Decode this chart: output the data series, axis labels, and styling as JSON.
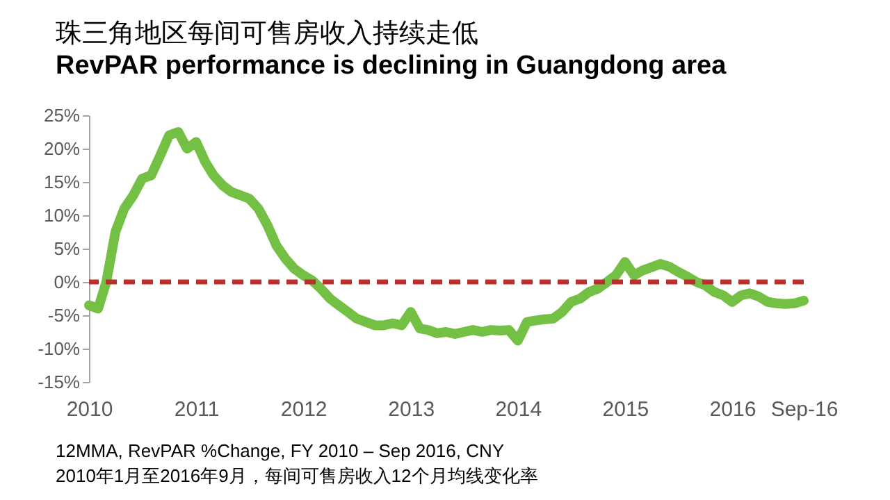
{
  "chart_data": {
    "type": "line",
    "title": "珠三角地区每间可售房收入持续走低",
    "subtitle": "RevPAR performance is declining in Guangdong area",
    "x": [
      "2010-01",
      "2010-02",
      "2010-03",
      "2010-04",
      "2010-05",
      "2010-06",
      "2010-07",
      "2010-08",
      "2010-09",
      "2010-10",
      "2010-11",
      "2010-12",
      "2011-01",
      "2011-02",
      "2011-03",
      "2011-04",
      "2011-05",
      "2011-06",
      "2011-07",
      "2011-08",
      "2011-09",
      "2011-10",
      "2011-11",
      "2011-12",
      "2012-01",
      "2012-02",
      "2012-03",
      "2012-04",
      "2012-05",
      "2012-06",
      "2012-07",
      "2012-08",
      "2012-09",
      "2012-10",
      "2012-11",
      "2012-12",
      "2013-01",
      "2013-02",
      "2013-03",
      "2013-04",
      "2013-05",
      "2013-06",
      "2013-07",
      "2013-08",
      "2013-09",
      "2013-10",
      "2013-11",
      "2013-12",
      "2014-01",
      "2014-02",
      "2014-03",
      "2014-04",
      "2014-05",
      "2014-06",
      "2014-07",
      "2014-08",
      "2014-09",
      "2014-10",
      "2014-11",
      "2014-12",
      "2015-01",
      "2015-02",
      "2015-03",
      "2015-04",
      "2015-05",
      "2015-06",
      "2015-07",
      "2015-08",
      "2015-09",
      "2015-10",
      "2015-11",
      "2015-12",
      "2016-01",
      "2016-02",
      "2016-03",
      "2016-04",
      "2016-05",
      "2016-06",
      "2016-07",
      "2016-08",
      "2016-09"
    ],
    "series": [
      {
        "color": "#74c044",
        "values": [
          -3.5,
          -4,
          0,
          7.5,
          11,
          13,
          15.5,
          16,
          19,
          22,
          22.5,
          20,
          21,
          18,
          16,
          14.5,
          13.5,
          13,
          12.5,
          11,
          8.5,
          5.5,
          3.5,
          2,
          1,
          0.2,
          -1,
          -2.5,
          -3.5,
          -4.5,
          -5.5,
          -6,
          -6.5,
          -6.5,
          -6.2,
          -6.5,
          -4.5,
          -7,
          -7.2,
          -7.7,
          -7.5,
          -7.8,
          -7.5,
          -7.2,
          -7.5,
          -7.2,
          -7.3,
          -7.2,
          -8.8,
          -6,
          -5.8,
          -5.6,
          -5.5,
          -4.5,
          -3,
          -2.5,
          -1.5,
          -1,
          0,
          1,
          3,
          1,
          1.7,
          2.2,
          2.7,
          2.3,
          1.5,
          0.8,
          0,
          -0.5,
          -1.5,
          -2,
          -3,
          -2,
          -1.7,
          -2.2,
          -3,
          -3.2,
          -3.3,
          -3.2,
          -2.8
        ]
      }
    ],
    "xlim": [
      "2010-01",
      "2016-09"
    ],
    "xticks": [
      "2010",
      "2011",
      "2012",
      "2013",
      "2014",
      "2015",
      "2016",
      {
        "value": "2016-09",
        "label": "Sep-16"
      }
    ],
    "ylim": [
      -15,
      25
    ],
    "yticks": [
      {
        "value": -15,
        "label": "-15%"
      },
      {
        "value": -10,
        "label": "-10%"
      },
      {
        "value": -5,
        "label": "-5%"
      },
      {
        "value": 0,
        "label": "0%"
      },
      {
        "value": 5,
        "label": "5%"
      },
      {
        "value": 10,
        "label": "10%"
      },
      {
        "value": 15,
        "label": "15%"
      },
      {
        "value": 20,
        "label": "20%"
      },
      {
        "value": 25,
        "label": "25%"
      }
    ],
    "ref_lines": [
      {
        "axis": "y",
        "value": 0,
        "color": "#b8312f",
        "line_style": "dashed"
      }
    ],
    "grid": false,
    "line_style": "solid",
    "annotations": [
      "12MMA, RevPAR %Change, FY 2010 – Sep 2016, CNY",
      "2010年1月至2016年9月，每间可售房收入12个月均线变化率"
    ]
  }
}
